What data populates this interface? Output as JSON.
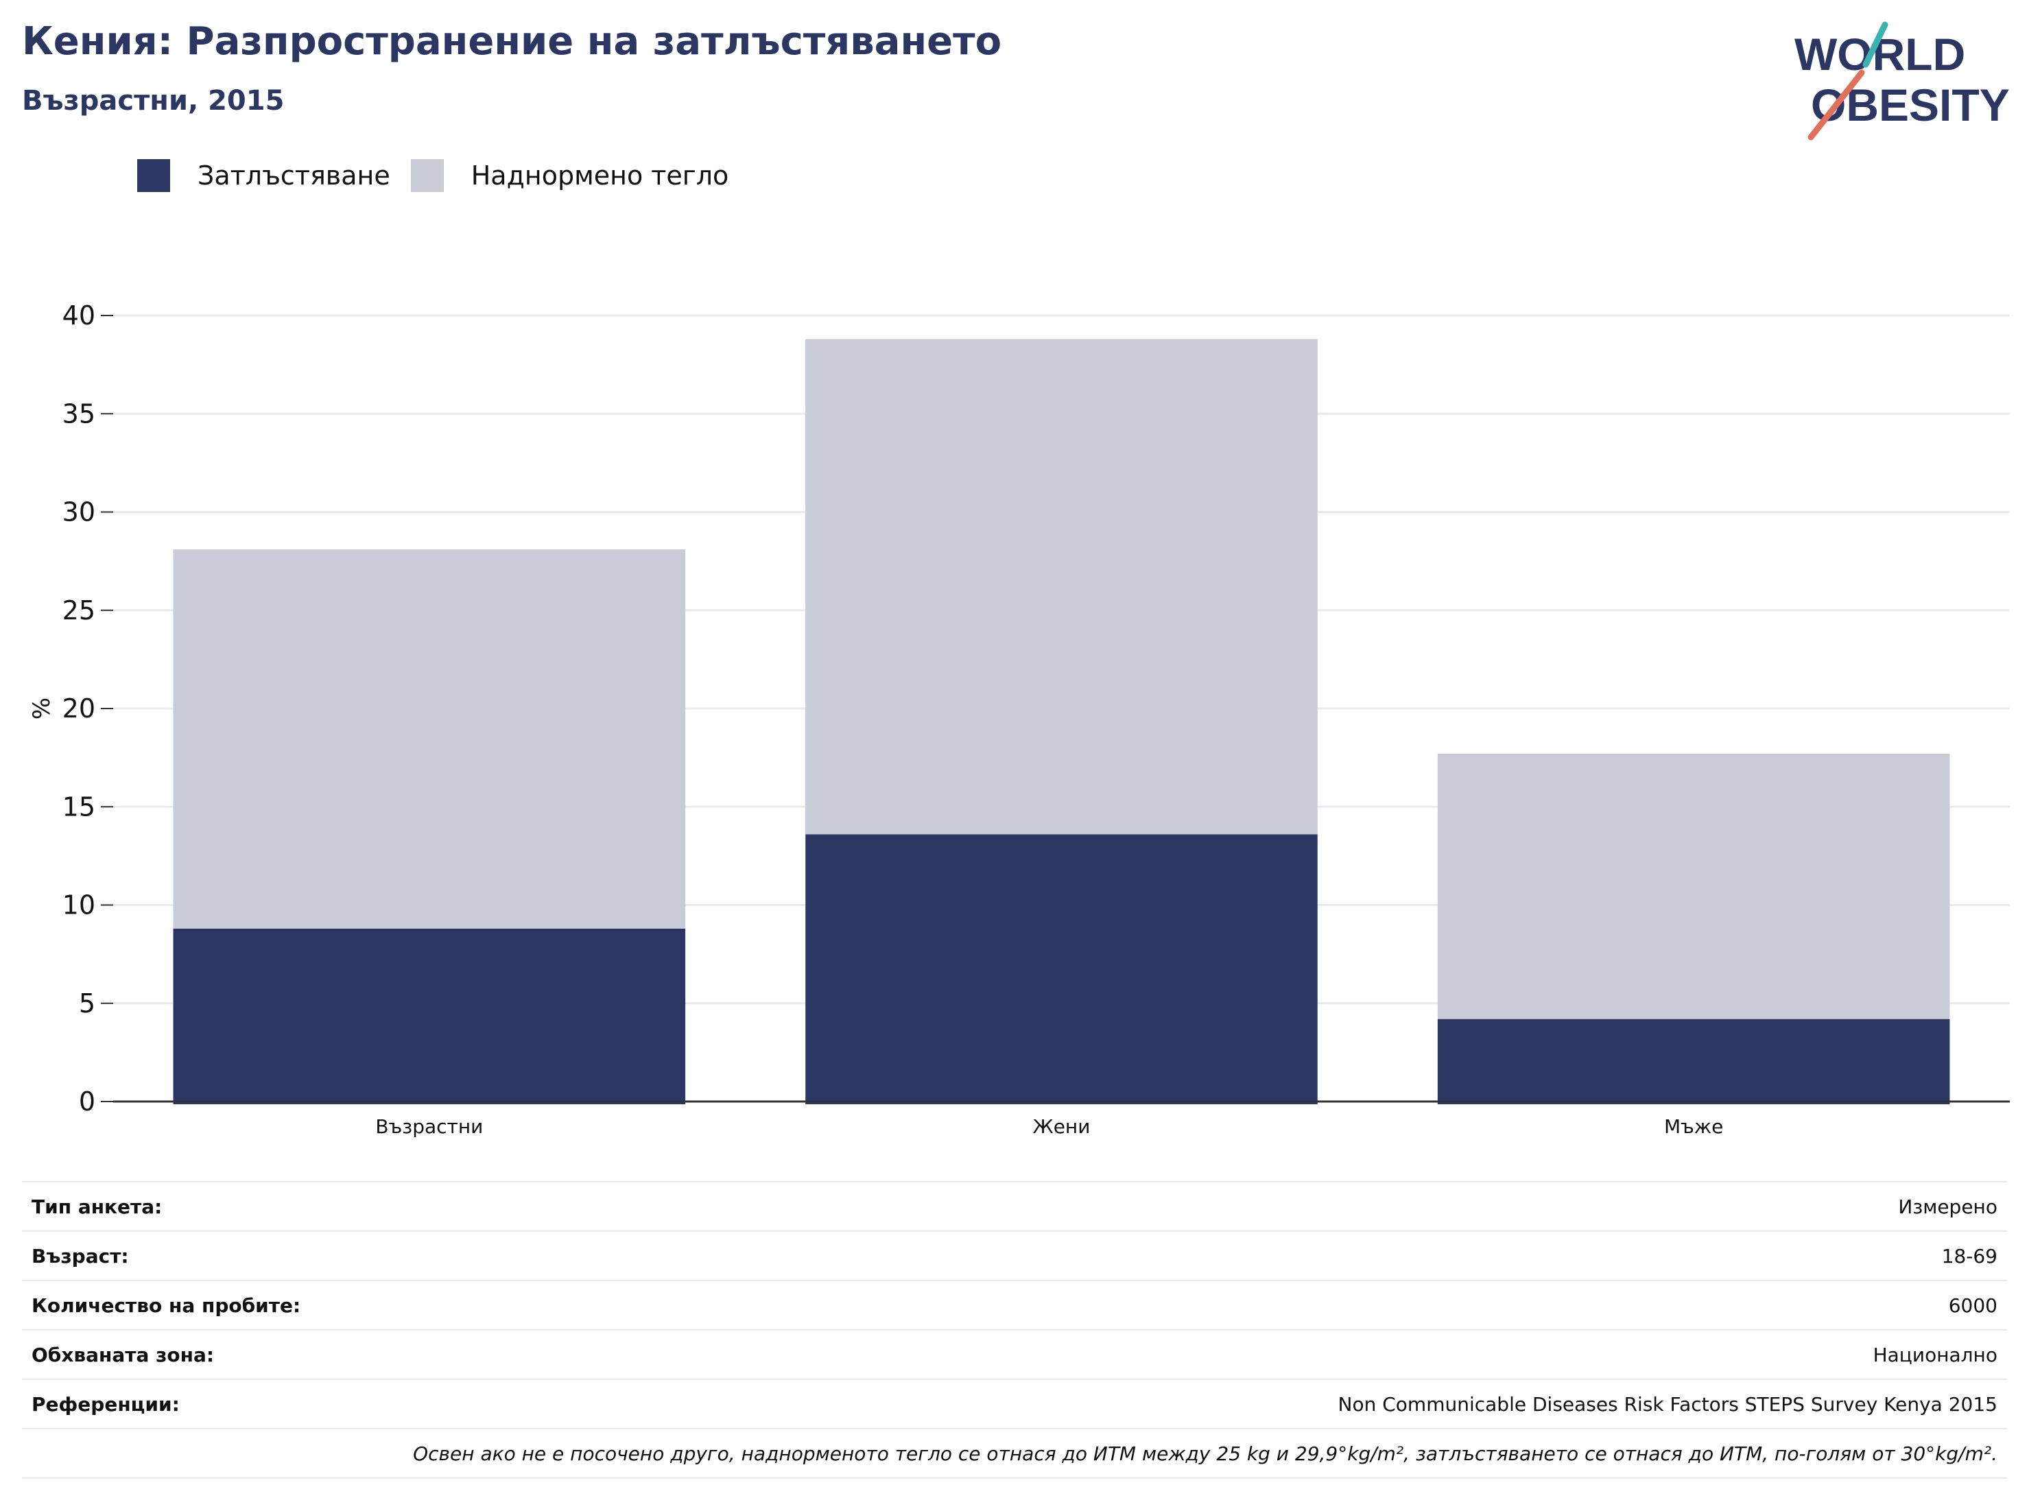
{
  "header": {
    "title": "Кения: Разпространение на затлъстяването",
    "subtitle": "Възрастни, 2015"
  },
  "logo": {
    "line1": "WORLD",
    "line2": "OBESITY"
  },
  "colors": {
    "obesity": "#2b3663",
    "overweight": "#c9cbd6",
    "accent_teal": "#3bb3b1",
    "accent_red": "#e0705a"
  },
  "chart_data": {
    "type": "bar",
    "stacked": true,
    "categories": [
      "Възрастни",
      "Жени",
      "Мъже"
    ],
    "series": [
      {
        "name": "Затлъстяване",
        "values": [
          8.8,
          13.6,
          4.2
        ]
      },
      {
        "name": "Наднормено тегло",
        "values": [
          19.3,
          25.2,
          13.5
        ]
      }
    ],
    "ylabel": "%",
    "ylim": [
      0,
      40
    ],
    "yticks": [
      0,
      5,
      10,
      15,
      20,
      25,
      30,
      35,
      40
    ],
    "grid": true,
    "legend": "top-left"
  },
  "info": {
    "rows": [
      {
        "label": "Тип анкета:",
        "value": "Измерено"
      },
      {
        "label": "Възраст:",
        "value": "18-69"
      },
      {
        "label": "Количество на пробите:",
        "value": "6000"
      },
      {
        "label": "Обхваната зона:",
        "value": "Национално"
      },
      {
        "label": "Референции:",
        "value": "Non Communicable Diseases Risk Factors STEPS Survey Kenya 2015"
      }
    ],
    "note": "Освен ако не е посочено друго, наднорменото тегло се отнася до ИТМ между 25 kg и 29,9°kg/m², затлъстяването се отнася до ИТМ, по-голям от 30°kg/m²."
  }
}
